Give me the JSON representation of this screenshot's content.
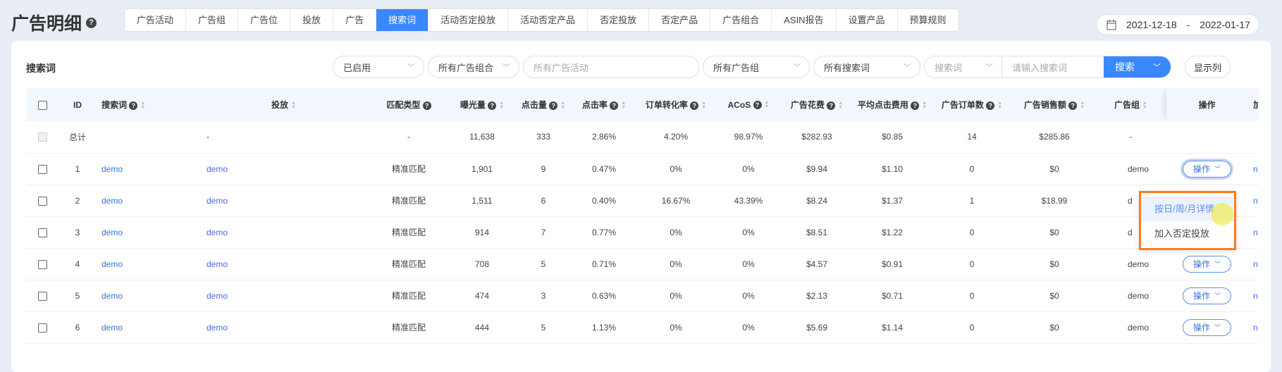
{
  "page": {
    "title": "广告明细"
  },
  "tabs": [
    {
      "label": "广告活动"
    },
    {
      "label": "广告组"
    },
    {
      "label": "广告位"
    },
    {
      "label": "投放"
    },
    {
      "label": "广告"
    },
    {
      "label": "搜索词",
      "active": true
    },
    {
      "label": "活动否定投放"
    },
    {
      "label": "活动否定产品"
    },
    {
      "label": "否定投放"
    },
    {
      "label": "否定产品"
    },
    {
      "label": "广告组合"
    },
    {
      "label": "ASIN报告"
    },
    {
      "label": "设置产品"
    },
    {
      "label": "预算规则"
    }
  ],
  "date_range": {
    "start": "2021-12-18",
    "separator": "-",
    "end": "2022-01-17",
    "icon": "calendar-icon"
  },
  "card": {
    "title": "搜索词"
  },
  "filters": {
    "status": "已启用",
    "portfolio": "所有广告组合",
    "campaign_placeholder": "所有广告活动",
    "ad_group": "所有广告组",
    "search_terms": "所有搜索词",
    "search_field": "搜索词",
    "search_placeholder": "请输入搜索词",
    "search_button": "搜索",
    "columns_button": "显示列"
  },
  "table": {
    "headers": {
      "id": "ID",
      "term": "搜索词",
      "targeting": "投放",
      "match": "匹配类型",
      "impressions": "曝光量",
      "clicks": "点击量",
      "ctr": "点击率",
      "cvr": "订单转化率",
      "acos": "ACoS",
      "spend": "广告花费",
      "cpc": "平均点击费用",
      "orders": "广告订单数",
      "sales": "广告销售额",
      "ad_group": "广告组",
      "actions": "操作",
      "extra": "加"
    },
    "total": {
      "label": "总计",
      "targeting": "-",
      "match": "-",
      "impressions": "11,638",
      "clicks": "333",
      "ctr": "2.86%",
      "cvr": "4.20%",
      "acos": "98.97%",
      "spend": "$282.93",
      "cpc": "$0.85",
      "orders": "14",
      "sales": "$285.86",
      "ad_group": "-"
    },
    "rows": [
      {
        "id": "1",
        "term": "demo",
        "targeting": "demo",
        "match": "精准匹配",
        "impressions": "1,901",
        "clicks": "9",
        "ctr": "0.47%",
        "cvr": "0%",
        "acos": "0%",
        "spend": "$9.94",
        "cpc": "$1.10",
        "orders": "0",
        "sales": "$0",
        "ad_group": "demo",
        "action": "操作",
        "extra": "no"
      },
      {
        "id": "2",
        "term": "demo",
        "targeting": "demo",
        "match": "精准匹配",
        "impressions": "1,511",
        "clicks": "6",
        "ctr": "0.40%",
        "cvr": "16.67%",
        "acos": "43.39%",
        "spend": "$8.24",
        "cpc": "$1.37",
        "orders": "1",
        "sales": "$18.99",
        "ad_group": "d",
        "action": "",
        "extra": "no"
      },
      {
        "id": "3",
        "term": "demo",
        "targeting": "demo",
        "match": "精准匹配",
        "impressions": "914",
        "clicks": "7",
        "ctr": "0.77%",
        "cvr": "0%",
        "acos": "0%",
        "spend": "$8.51",
        "cpc": "$1.22",
        "orders": "0",
        "sales": "$0",
        "ad_group": "d",
        "action": "",
        "extra": "no"
      },
      {
        "id": "4",
        "term": "demo",
        "targeting": "demo",
        "match": "精准匹配",
        "impressions": "708",
        "clicks": "5",
        "ctr": "0.71%",
        "cvr": "0%",
        "acos": "0%",
        "spend": "$4.57",
        "cpc": "$0.91",
        "orders": "0",
        "sales": "$0",
        "ad_group": "demo",
        "action": "操作",
        "extra": "no"
      },
      {
        "id": "5",
        "term": "demo",
        "targeting": "demo",
        "match": "精准匹配",
        "impressions": "474",
        "clicks": "3",
        "ctr": "0.63%",
        "cvr": "0%",
        "acos": "0%",
        "spend": "$2.13",
        "cpc": "$0.71",
        "orders": "0",
        "sales": "$0",
        "ad_group": "demo",
        "action": "操作",
        "extra": "no"
      },
      {
        "id": "6",
        "term": "demo",
        "targeting": "demo",
        "match": "精准匹配",
        "impressions": "444",
        "clicks": "5",
        "ctr": "1.13%",
        "cvr": "0%",
        "acos": "0%",
        "spend": "$5.69",
        "cpc": "$1.14",
        "orders": "0",
        "sales": "$0",
        "ad_group": "demo",
        "action": "操作",
        "extra": "no"
      }
    ]
  },
  "dropdown": {
    "items": [
      {
        "label": "按日/周/月详情",
        "hover": true
      },
      {
        "label": "加入否定投放"
      }
    ]
  },
  "colors": {
    "accent": "#3a88fd",
    "highlight_border": "#ff7a1f"
  }
}
